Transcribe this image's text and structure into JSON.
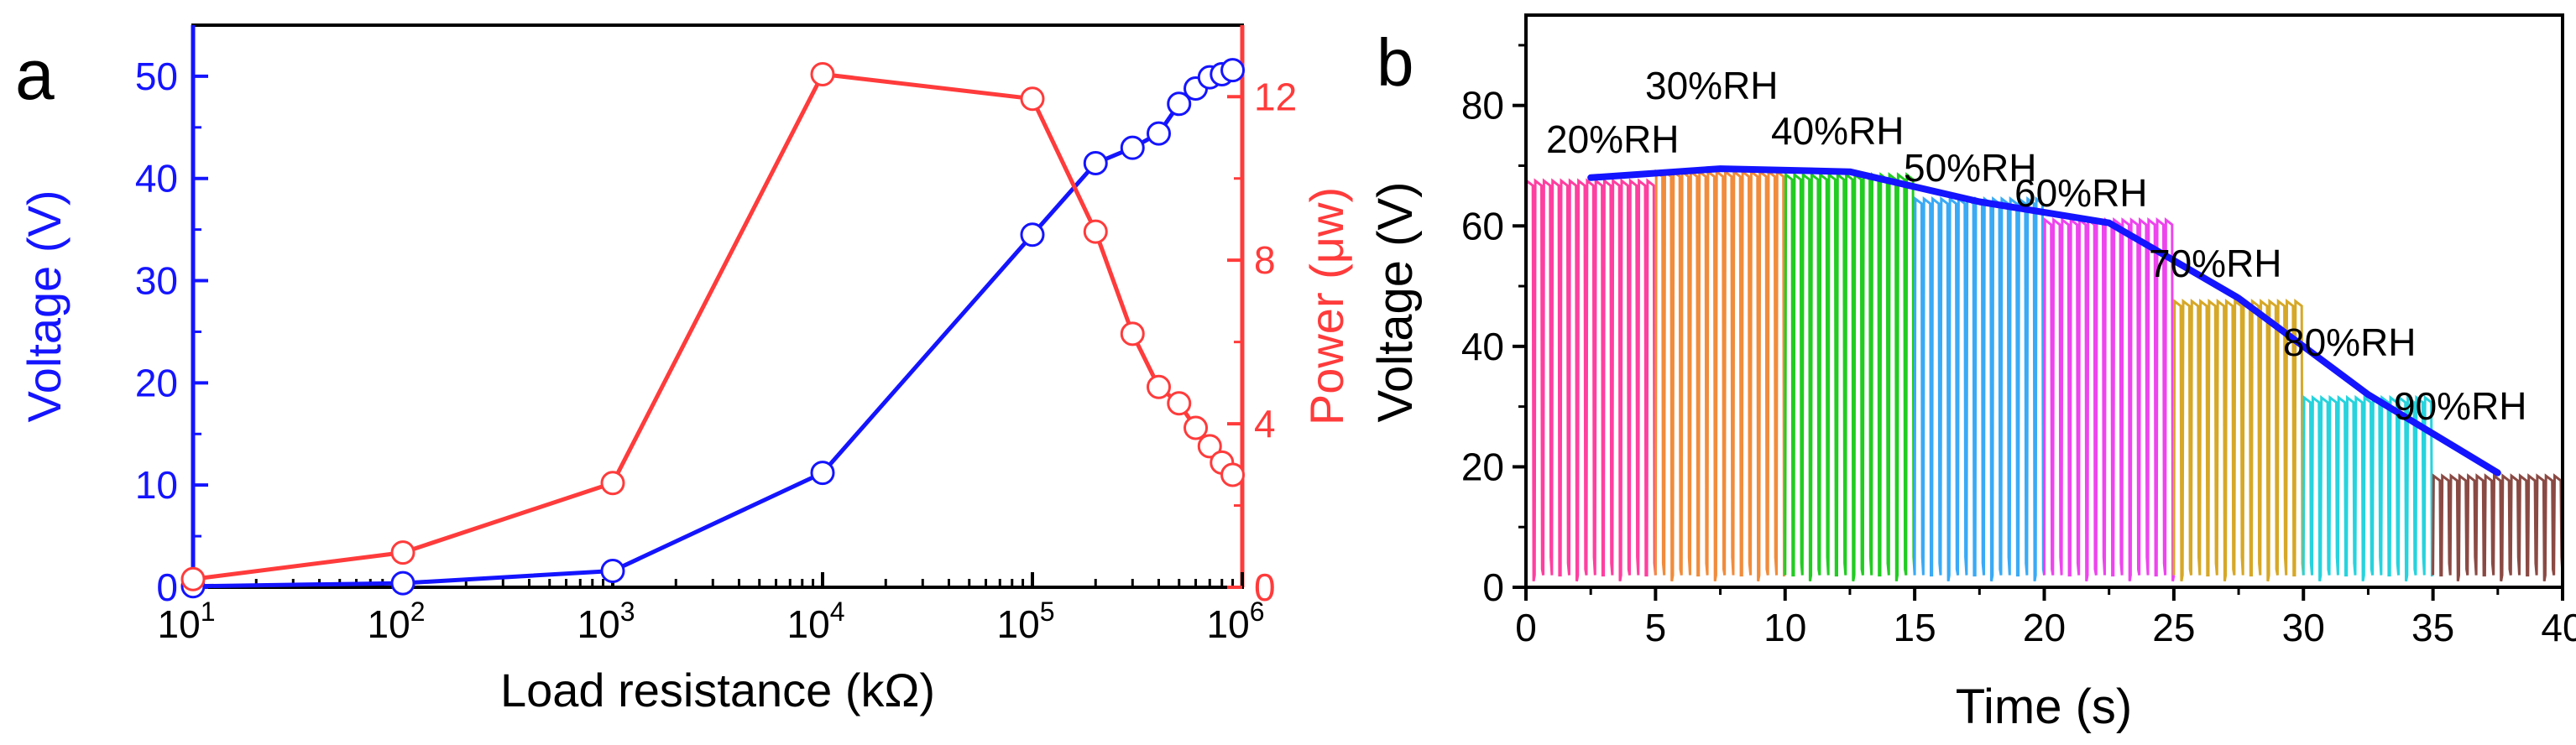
{
  "chart_data": [
    {
      "panel_label": "a",
      "type": "line",
      "xscale": "log",
      "xlabel": "Load resistance (kΩ)",
      "xlim": [
        10,
        1000000
      ],
      "x_ticks": [
        {
          "value": 10,
          "base": "10",
          "exp": "1"
        },
        {
          "value": 100,
          "base": "10",
          "exp": "2"
        },
        {
          "value": 1000,
          "base": "10",
          "exp": "3"
        },
        {
          "value": 10000,
          "base": "10",
          "exp": "4"
        },
        {
          "value": 100000,
          "base": "10",
          "exp": "5"
        },
        {
          "value": 1000000,
          "base": "10",
          "exp": "6"
        }
      ],
      "y_left": {
        "label": "Voltage (V)",
        "range": [
          0,
          55
        ],
        "ticks": [
          "0",
          "10",
          "20",
          "30",
          "40",
          "50"
        ],
        "color": "#1414ff"
      },
      "y_right": {
        "label": "Power (μw)",
        "range": [
          0,
          13.75
        ],
        "ticks": [
          "0",
          "4",
          "8",
          "12"
        ],
        "color": "#ff3b3b"
      },
      "series": [
        {
          "name": "Voltage",
          "axis": "left",
          "color": "#1414ff",
          "marker": "open-circle",
          "x": [
            10,
            100,
            1000,
            10000,
            100000,
            200000,
            300000,
            400000,
            500000,
            600000,
            700000,
            800000,
            900000
          ],
          "values": [
            0.1,
            0.4,
            1.6,
            11.2,
            34.5,
            41.5,
            43.0,
            44.4,
            47.3,
            48.8,
            49.9,
            50.2,
            50.6
          ]
        },
        {
          "name": "Power",
          "axis": "right",
          "color": "#ff3b3b",
          "marker": "open-circle",
          "x": [
            10,
            100,
            1000,
            10000,
            100000,
            200000,
            300000,
            400000,
            500000,
            600000,
            700000,
            800000,
            900000
          ],
          "values": [
            0.2,
            0.85,
            2.55,
            12.55,
            11.95,
            8.7,
            6.2,
            4.9,
            4.5,
            3.9,
            3.45,
            3.05,
            2.75
          ]
        }
      ]
    },
    {
      "panel_label": "b",
      "type": "line",
      "xlabel": "Time (s)",
      "ylabel": "Voltage (V)",
      "xlim": [
        0,
        40
      ],
      "ylim": [
        0,
        95
      ],
      "x_ticks": [
        "0",
        "5",
        "10",
        "15",
        "20",
        "25",
        "30",
        "35",
        "40"
      ],
      "y_ticks": [
        "0",
        "20",
        "40",
        "60",
        "80"
      ],
      "segments": [
        {
          "label": "20%RH",
          "t_start": 0,
          "t_end": 5,
          "peak": 67.5,
          "color": "#ff3fa0"
        },
        {
          "label": "30%RH",
          "t_start": 5,
          "t_end": 10,
          "peak": 69,
          "color": "#f08c3c"
        },
        {
          "label": "40%RH",
          "t_start": 10,
          "t_end": 15,
          "peak": 68.5,
          "color": "#22cc22"
        },
        {
          "label": "50%RH",
          "t_start": 15,
          "t_end": 20,
          "peak": 64.5,
          "color": "#3aaaf5"
        },
        {
          "label": "60%RH",
          "t_start": 20,
          "t_end": 25,
          "peak": 61,
          "color": "#ee44ee"
        },
        {
          "label": "70%RH",
          "t_start": 25,
          "t_end": 30,
          "peak": 47.5,
          "color": "#d6a828"
        },
        {
          "label": "80%RH",
          "t_start": 30,
          "t_end": 35,
          "peak": 31.5,
          "color": "#27d3dd"
        },
        {
          "label": "90%RH",
          "t_start": 35,
          "t_end": 40,
          "peak": 18.5,
          "color": "#8a4a44"
        }
      ],
      "trend": {
        "color": "#1414ff",
        "x": [
          2.5,
          7.5,
          12.5,
          17.5,
          22.5,
          27.5,
          32.5,
          37.5
        ],
        "values": [
          68,
          69.5,
          69,
          64,
          60.5,
          48,
          32,
          19
        ]
      }
    }
  ]
}
